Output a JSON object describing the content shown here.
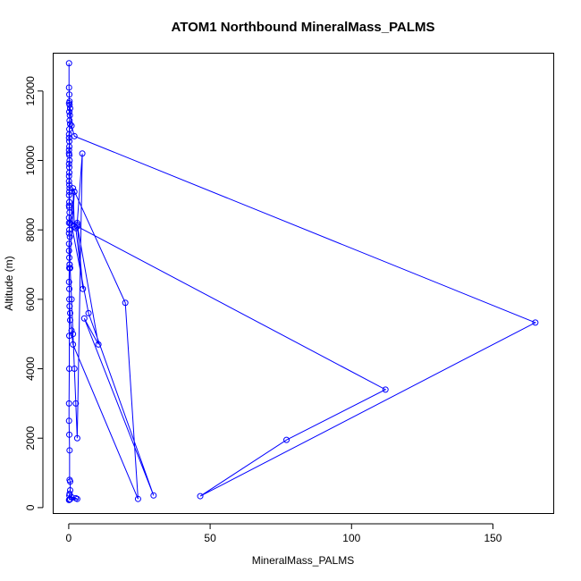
{
  "chart_data": {
    "type": "line",
    "title": "ATOM1 Northbound MineralMass_PALMS",
    "xlabel": "MineralMass_PALMS",
    "ylabel": "Altitude (m)",
    "xlim": [
      -5.5,
      171.5
    ],
    "ylim": [
      -170,
      13090
    ],
    "xticks": [
      0,
      50,
      100,
      150
    ],
    "yticks": [
      0,
      2000,
      4000,
      6000,
      8000,
      10000,
      12000
    ],
    "grid": false,
    "legend": "none",
    "series_color": "#0000ff",
    "series": [
      {
        "x": [
          0.1,
          0.1,
          0.2,
          0.1,
          0.3,
          0.2,
          0.4,
          0.3,
          0.5,
          0.2,
          0.1,
          0.1,
          0.2,
          0.2,
          0.1,
          0.1,
          0.2,
          0.3,
          0.1,
          0.2,
          0.2,
          0.1,
          0.1,
          0.2,
          0.3,
          0.2,
          0.1,
          0.2,
          0.1,
          0.2,
          0.3,
          0.1,
          0.1,
          0.2,
          0.1,
          0.4,
          0.1,
          0.1,
          0.2,
          0.3,
          0.5,
          1.0,
          1.5,
          2.0,
          2.5,
          3.0,
          4.8,
          3.0,
          2.0,
          1.5,
          20.0,
          24.5,
          1.5,
          1.0,
          0.5,
          0.5,
          0.3,
          0.2,
          0.2,
          0.1,
          0.2,
          0.3,
          2.0,
          0.5,
          1.0,
          7.0,
          30.0,
          5.5,
          10.5,
          3.0,
          5.0,
          2.5,
          3.0,
          112.0,
          77.0,
          46.5,
          165.0,
          2.0,
          1.0,
          0.5,
          0.3,
          0.2,
          0.2,
          0.1,
          0.1,
          0.2,
          0.3,
          0.3,
          0.5,
          0.5,
          0.3,
          0.2,
          1.0,
          2.5,
          3.0,
          0.5,
          0.2,
          0.1
        ],
        "y": [
          12800,
          12100,
          11900,
          11650,
          11600,
          11400,
          11300,
          11150,
          11050,
          10900,
          10750,
          10650,
          10550,
          10400,
          10300,
          10200,
          10150,
          10000,
          9900,
          9800,
          9650,
          9550,
          9400,
          9300,
          9200,
          9100,
          9000,
          8800,
          8700,
          8650,
          8500,
          8350,
          8200,
          8000,
          7900,
          7800,
          7600,
          7400,
          7200,
          7000,
          6900,
          6000,
          5000,
          4000,
          3000,
          2000,
          10200,
          8200,
          8100,
          9200,
          5900,
          250,
          4700,
          5100,
          5400,
          5600,
          5800,
          6000,
          6300,
          6500,
          6900,
          7000,
          9100,
          8200,
          8150,
          5600,
          350,
          5450,
          4700,
          8150,
          6300,
          8050,
          8100,
          3400,
          1950,
          330,
          5330,
          10700,
          11000,
          11500,
          11700,
          4950,
          4000,
          3000,
          2500,
          2100,
          1650,
          800,
          750,
          500,
          400,
          350,
          300,
          270,
          250,
          240,
          230,
          220
        ]
      }
    ]
  }
}
